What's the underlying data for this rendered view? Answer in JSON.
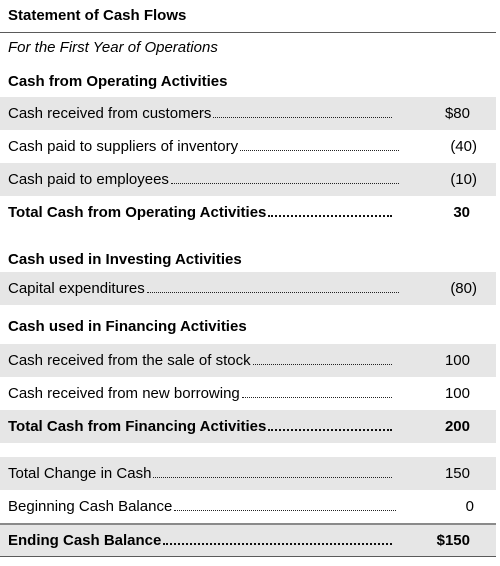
{
  "statement": {
    "title": "Statement of Cash Flows",
    "subtitle": "For the First Year of Operations"
  },
  "operating": {
    "heading": "Cash from Operating Activities",
    "rows": [
      {
        "label": "Cash received from customers",
        "amount": "$80"
      },
      {
        "label": "Cash paid to suppliers of inventory",
        "amount": "(40)"
      },
      {
        "label": "Cash paid to employees",
        "amount": "(10)"
      }
    ],
    "total": {
      "label": "Total Cash from Operating Activities",
      "amount": "30"
    }
  },
  "investing": {
    "heading": "Cash used in Investing Activities",
    "rows": [
      {
        "label": "Capital expenditures",
        "amount": "(80)"
      }
    ]
  },
  "financing": {
    "heading": "Cash used in Financing Activities",
    "rows": [
      {
        "label": "Cash received from the sale of stock",
        "amount": "100"
      },
      {
        "label": "Cash received from new borrowing",
        "amount": "100"
      }
    ],
    "total": {
      "label": "Total Cash from Financing Activities",
      "amount": "200"
    }
  },
  "summary": {
    "rows": [
      {
        "label": "Total Change in Cash",
        "amount": "150"
      },
      {
        "label": "Beginning Cash Balance",
        "amount": "0"
      }
    ],
    "total": {
      "label": "Ending Cash Balance",
      "amount": "$150"
    }
  }
}
